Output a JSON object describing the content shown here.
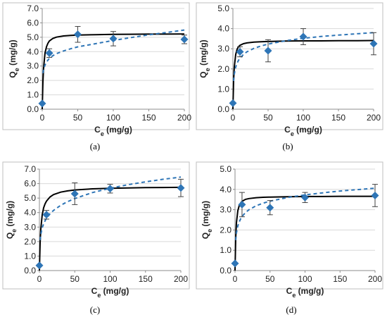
{
  "colors": {
    "marker": "#2e75b6",
    "langmuir_fit": "#000000",
    "freundlich_fit": "#2e75b6",
    "error_bar": "#404040",
    "frame": "#bfbfbf",
    "grid": "#d9d9d9"
  },
  "chart_data": [
    {
      "type": "scatter",
      "caption": "(a)",
      "xlabel": "C",
      "xlabel_sub": "e",
      "xlabel_unit": " (mg/g)",
      "ylabel": "Q",
      "ylabel_sub": "e",
      "ylabel_unit": " (mg/g)",
      "xlim": [
        0,
        200
      ],
      "ylim": [
        0,
        7
      ],
      "xticks": [
        0,
        50,
        100,
        150,
        200
      ],
      "yticks": [
        0,
        1,
        2,
        3,
        4,
        5,
        6,
        7
      ],
      "ytick_labels": [
        "0.0",
        "1.0",
        "2.0",
        "3.0",
        "4.0",
        "5.0",
        "6.0",
        "7.0"
      ],
      "grid": "horizontal",
      "points": {
        "x": [
          0,
          10,
          50,
          100,
          200
        ],
        "y": [
          0.4,
          3.9,
          5.2,
          4.9,
          4.85
        ],
        "err": [
          0.0,
          0.3,
          0.55,
          0.5,
          0.3
        ]
      },
      "fits": [
        {
          "style": "solid",
          "x": [
            0,
            1,
            2,
            4,
            6,
            8,
            10,
            15,
            20,
            30,
            40,
            50,
            75,
            100,
            125,
            150,
            175,
            200
          ],
          "y": [
            0,
            1.92,
            2.91,
            3.91,
            4.34,
            4.58,
            4.74,
            4.92,
            5.01,
            5.09,
            5.13,
            5.15,
            5.18,
            5.2,
            5.21,
            5.22,
            5.22,
            5.23
          ]
        },
        {
          "style": "dashed",
          "x": [
            1,
            2,
            4,
            6,
            8,
            10,
            15,
            20,
            30,
            40,
            50,
            75,
            100,
            125,
            150,
            175,
            200
          ],
          "y": [
            2.5,
            2.78,
            3.07,
            3.26,
            3.41,
            3.53,
            3.72,
            3.86,
            4.05,
            4.2,
            4.33,
            4.55,
            4.78,
            4.98,
            5.17,
            5.33,
            5.5
          ]
        }
      ]
    },
    {
      "type": "scatter",
      "caption": "(b)",
      "xlabel": "C",
      "xlabel_sub": "e",
      "xlabel_unit": " (mg/g)",
      "ylabel": "Q",
      "ylabel_sub": "e",
      "ylabel_unit": " (mg/g)",
      "xlim": [
        0,
        200
      ],
      "ylim": [
        0,
        5
      ],
      "xticks": [
        0,
        50,
        100,
        150,
        200
      ],
      "yticks": [
        0,
        1,
        2,
        3,
        4,
        5
      ],
      "ytick_labels": [
        "0.0",
        "1.0",
        "2.0",
        "3.0",
        "4.0",
        "5.0"
      ],
      "grid": "horizontal",
      "points": {
        "x": [
          0,
          10,
          50,
          100,
          200
        ],
        "y": [
          0.3,
          2.85,
          2.9,
          3.6,
          3.25
        ],
        "err": [
          0.0,
          0.25,
          0.55,
          0.4,
          0.55
        ]
      },
      "fits": [
        {
          "style": "solid",
          "x": [
            0,
            1,
            2,
            4,
            6,
            8,
            10,
            15,
            20,
            30,
            40,
            50,
            75,
            100,
            125,
            150,
            175,
            200
          ],
          "y": [
            0,
            1.44,
            2.11,
            2.72,
            2.98,
            3.1,
            3.17,
            3.25,
            3.29,
            3.33,
            3.35,
            3.36,
            3.38,
            3.39,
            3.39,
            3.4,
            3.4,
            3.41
          ]
        },
        {
          "style": "dashed",
          "x": [
            1,
            2,
            4,
            6,
            8,
            10,
            15,
            20,
            30,
            40,
            50,
            75,
            100,
            125,
            150,
            175,
            200
          ],
          "y": [
            1.4,
            1.75,
            2.09,
            2.29,
            2.43,
            2.53,
            2.72,
            2.85,
            3.02,
            3.14,
            3.23,
            3.4,
            3.52,
            3.61,
            3.68,
            3.74,
            3.8
          ]
        }
      ]
    },
    {
      "type": "scatter",
      "caption": "(c)",
      "xlabel": "C",
      "xlabel_sub": "e",
      "xlabel_unit": " (mg/g)",
      "ylabel": "Q",
      "ylabel_sub": "e",
      "ylabel_unit": " (mg/g)",
      "xlim": [
        0,
        200
      ],
      "ylim": [
        0,
        7
      ],
      "xticks": [
        0,
        50,
        100,
        150,
        200
      ],
      "yticks": [
        0,
        1,
        2,
        3,
        4,
        5,
        6,
        7
      ],
      "ytick_labels": [
        "0.0",
        "1.0",
        "2.0",
        "3.0",
        "4.0",
        "5.0",
        "6.0",
        "7.0"
      ],
      "grid": "horizontal",
      "points": {
        "x": [
          0,
          10,
          50,
          100,
          200
        ],
        "y": [
          0.35,
          3.85,
          5.3,
          5.65,
          5.7
        ],
        "err": [
          0.0,
          0.3,
          0.75,
          0.3,
          0.6
        ]
      },
      "fits": [
        {
          "style": "solid",
          "x": [
            0,
            1,
            2,
            4,
            6,
            8,
            10,
            15,
            20,
            30,
            40,
            50,
            75,
            100,
            125,
            150,
            175,
            200
          ],
          "y": [
            0,
            1.9,
            2.87,
            3.85,
            4.33,
            4.6,
            4.79,
            5.08,
            5.24,
            5.41,
            5.5,
            5.56,
            5.64,
            5.68,
            5.7,
            5.72,
            5.73,
            5.74
          ]
        },
        {
          "style": "dashed",
          "x": [
            1,
            2,
            4,
            6,
            8,
            10,
            15,
            20,
            30,
            40,
            50,
            75,
            100,
            125,
            150,
            175,
            200
          ],
          "y": [
            2.1,
            2.5,
            2.95,
            3.22,
            3.43,
            3.6,
            3.92,
            4.15,
            4.5,
            4.76,
            4.97,
            5.38,
            5.68,
            5.92,
            6.12,
            6.3,
            6.45
          ]
        }
      ]
    },
    {
      "type": "scatter",
      "caption": "(d)",
      "xlabel": "C",
      "xlabel_sub": "e",
      "xlabel_unit": " (mg/g)",
      "ylabel": "Q",
      "ylabel_sub": "e",
      "ylabel_unit": " (mg/g)",
      "xlim": [
        0,
        200
      ],
      "ylim": [
        0,
        5
      ],
      "xticks": [
        0,
        50,
        100,
        150,
        200
      ],
      "yticks": [
        0,
        1,
        2,
        3,
        4,
        5
      ],
      "ytick_labels": [
        "0.0",
        "1.0",
        "2.0",
        "3.0",
        "4.0",
        "5.0"
      ],
      "grid": "horizontal",
      "points": {
        "x": [
          0,
          10,
          50,
          100,
          200
        ],
        "y": [
          0.35,
          3.25,
          3.1,
          3.6,
          3.7
        ],
        "err": [
          0.0,
          0.6,
          0.35,
          0.25,
          0.55
        ]
      },
      "fits": [
        {
          "style": "solid",
          "x": [
            0,
            1,
            2,
            4,
            6,
            8,
            10,
            15,
            20,
            30,
            40,
            50,
            75,
            100,
            125,
            150,
            175,
            200
          ],
          "y": [
            0,
            1.6,
            2.35,
            2.95,
            3.2,
            3.33,
            3.41,
            3.51,
            3.55,
            3.59,
            3.61,
            3.62,
            3.64,
            3.65,
            3.65,
            3.66,
            3.66,
            3.66
          ]
        },
        {
          "style": "dashed",
          "x": [
            1,
            2,
            4,
            6,
            8,
            10,
            15,
            20,
            30,
            40,
            50,
            75,
            100,
            125,
            150,
            175,
            200
          ],
          "y": [
            1.5,
            1.85,
            2.2,
            2.4,
            2.55,
            2.66,
            2.86,
            3.0,
            3.19,
            3.32,
            3.42,
            3.6,
            3.73,
            3.83,
            3.92,
            3.99,
            4.06
          ]
        }
      ]
    }
  ]
}
